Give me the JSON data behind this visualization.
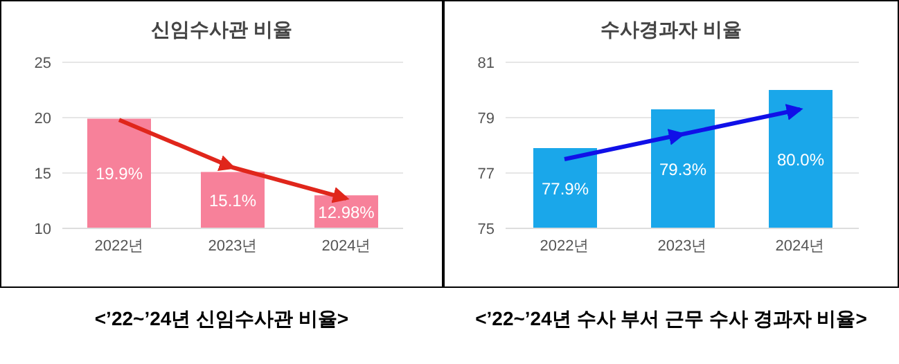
{
  "chart_data": [
    {
      "type": "bar",
      "title": "신임수사관 비율",
      "categories": [
        "2022년",
        "2023년",
        "2024년"
      ],
      "ylim": [
        10,
        25
      ],
      "yticks": [
        10,
        15,
        20,
        25
      ],
      "grid": "y",
      "annotations": [
        "<’22~’24년 신임수사관 비율>"
      ],
      "series": [
        {
          "color": "#f7819a",
          "values": [
            19.9,
            15.1,
            12.98
          ],
          "value_labels": [
            "19.9%",
            "15.1%",
            "12.98%"
          ]
        },
        {
          "type": "line",
          "color": "#e0261b",
          "values": [
            19.8,
            15.5,
            12.7
          ]
        }
      ]
    },
    {
      "type": "bar",
      "title": "수사경과자 비율",
      "categories": [
        "2022년",
        "2023년",
        "2024년"
      ],
      "ylim": [
        75,
        81
      ],
      "yticks": [
        75,
        77,
        79,
        81
      ],
      "grid": "y",
      "annotations": [
        "<’22~’24년 수사 부서 근무 수사 경과자 비율>"
      ],
      "series": [
        {
          "color": "#1aa7ea",
          "values": [
            77.9,
            79.3,
            80.0
          ],
          "value_labels": [
            "77.9%",
            "79.3%",
            "80.0%"
          ]
        },
        {
          "type": "line",
          "color": "#1010e8",
          "values": [
            77.5,
            78.4,
            79.3
          ]
        }
      ]
    }
  ]
}
